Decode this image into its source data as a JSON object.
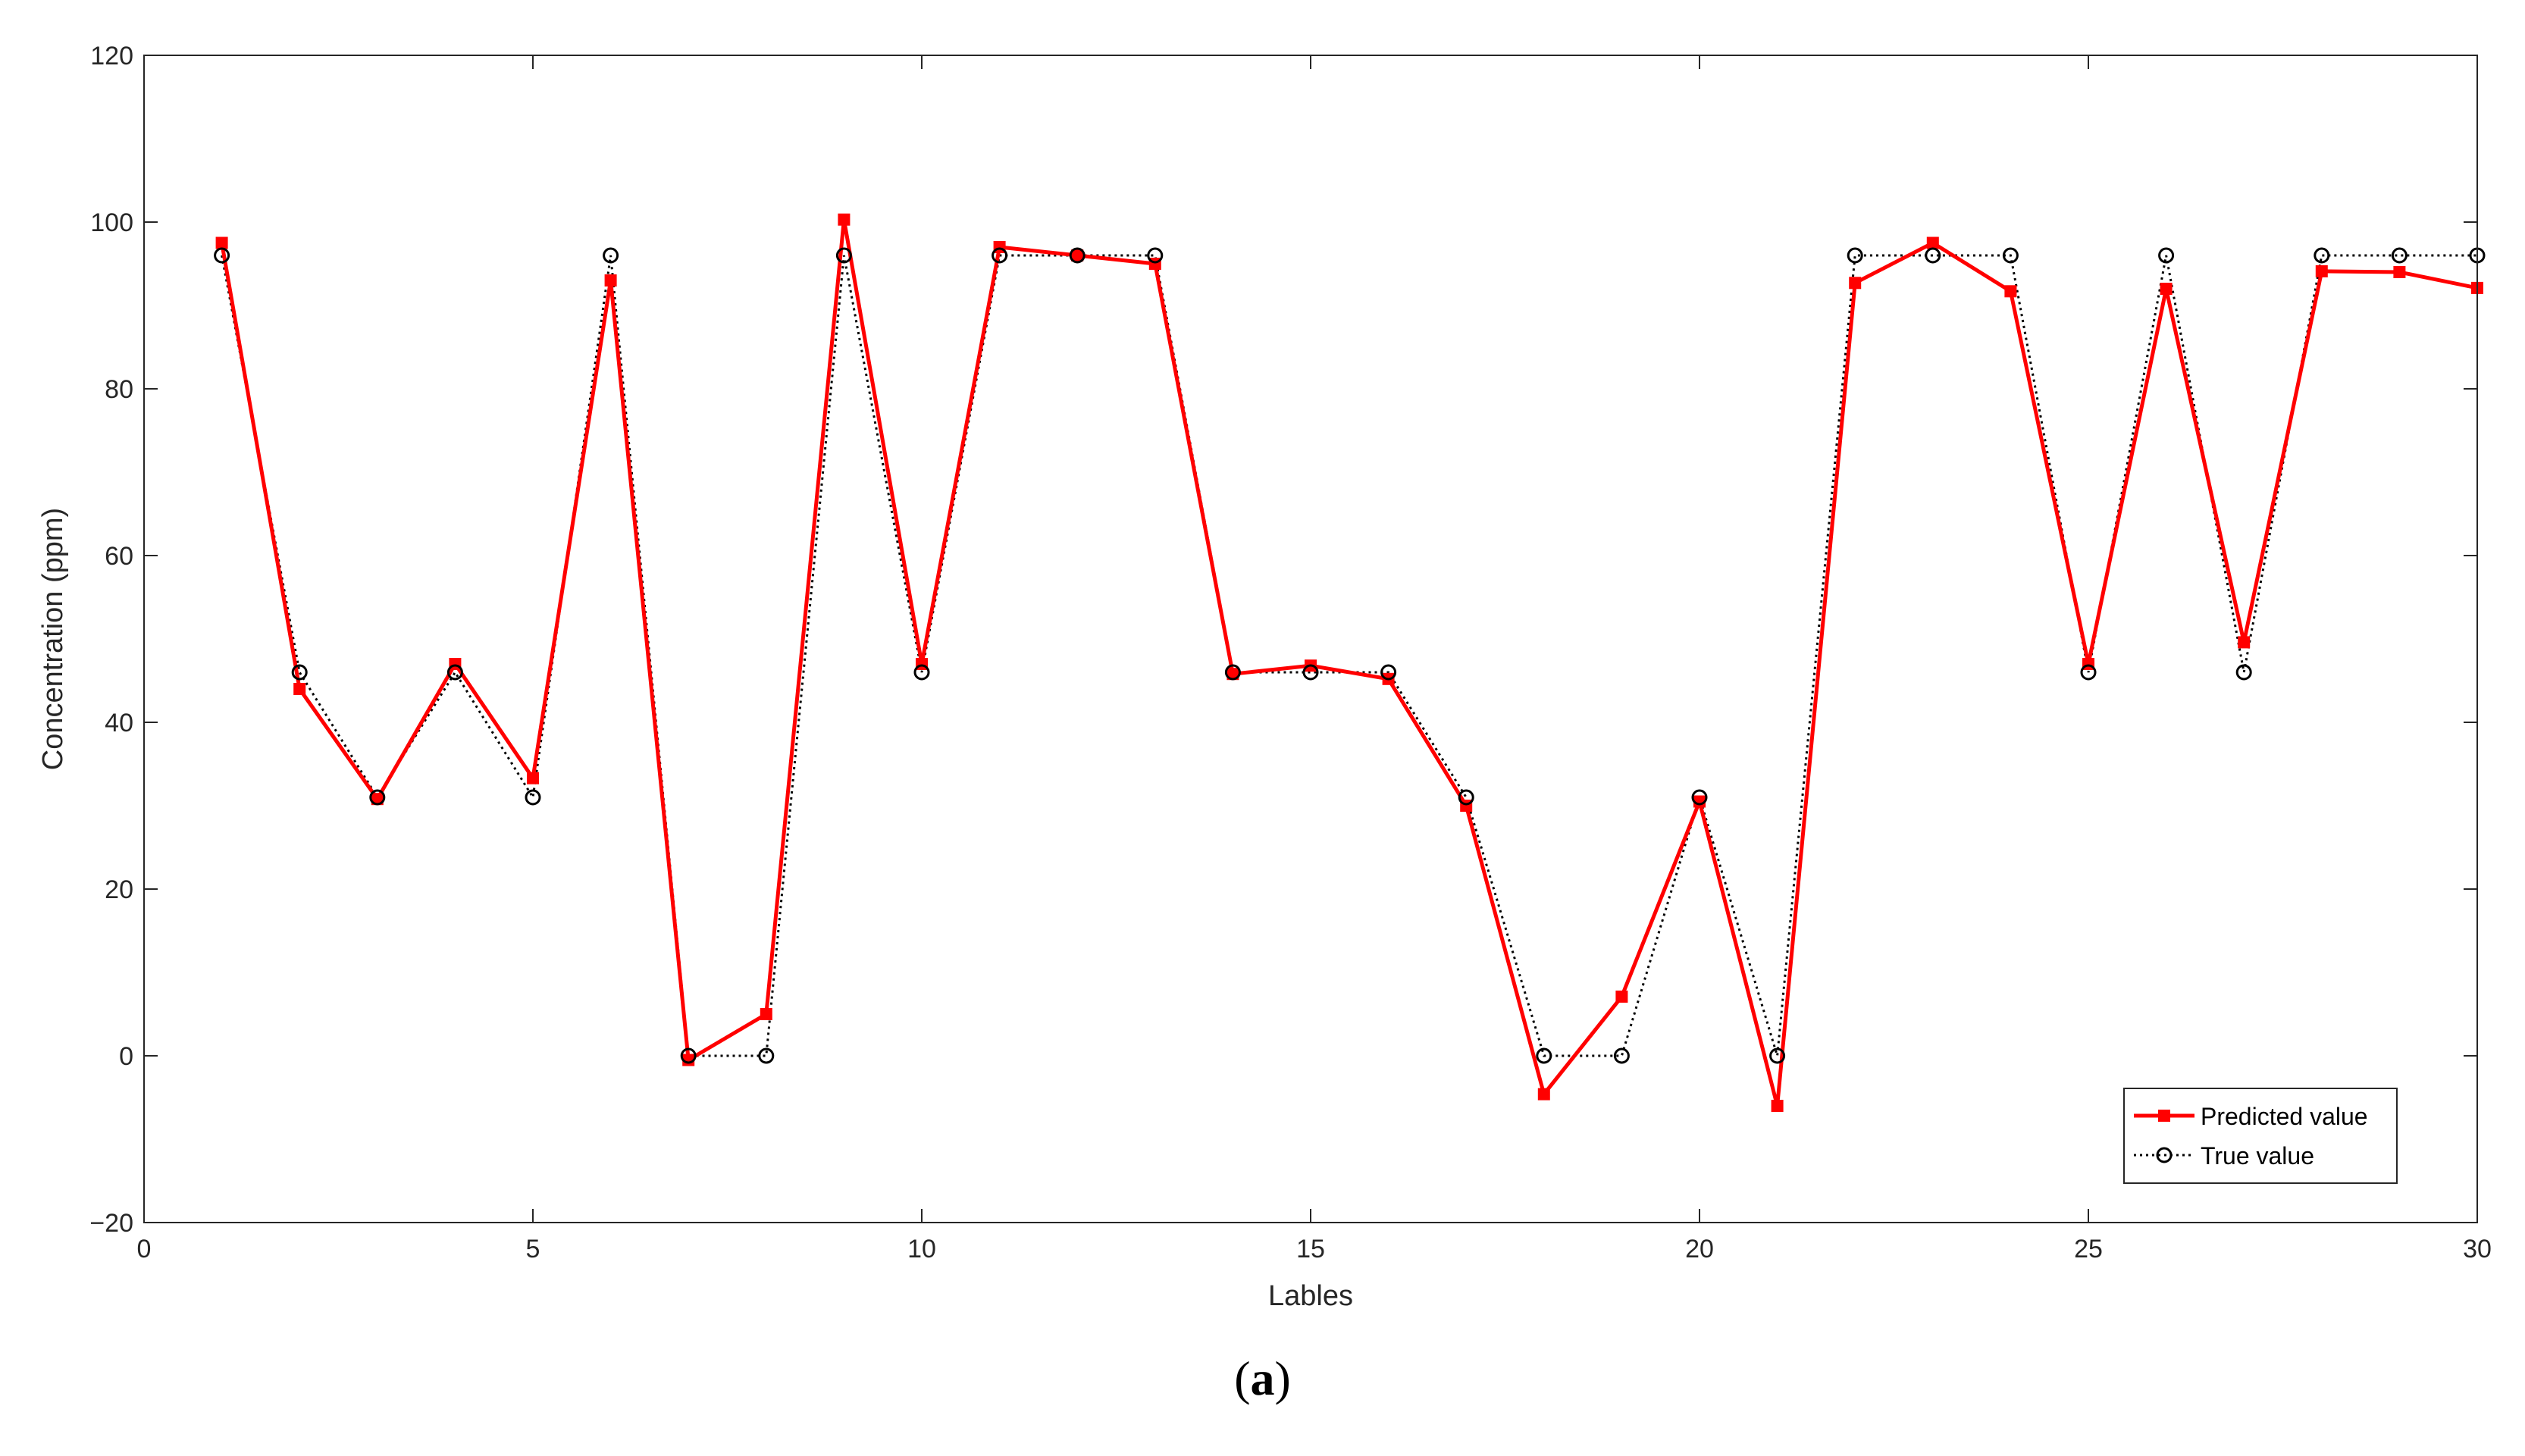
{
  "caption": {
    "open": "(",
    "letter": "a",
    "close": ")"
  },
  "colors": {
    "predicted": "#ff0000",
    "true": "#000000",
    "axis": "#262626",
    "background": "#ffffff"
  },
  "chart_data": {
    "type": "line",
    "title": "",
    "xlabel": "Lables",
    "ylabel": "Concentration (ppm)",
    "xlim": [
      0,
      30
    ],
    "ylim": [
      -20,
      120
    ],
    "xticks": [
      0,
      5,
      10,
      15,
      20,
      25,
      30
    ],
    "yticks": [
      -20,
      0,
      20,
      40,
      60,
      80,
      100,
      120
    ],
    "xtick_labels": [
      "0",
      "5",
      "10",
      "15",
      "20",
      "25",
      "30"
    ],
    "ytick_labels": [
      "−20",
      "0",
      "20",
      "40",
      "60",
      "80",
      "100",
      "120"
    ],
    "grid": false,
    "legend": "bottom-right",
    "x": [
      1,
      2,
      3,
      4,
      5,
      6,
      7,
      8,
      9,
      10,
      11,
      12,
      13,
      14,
      15,
      16,
      17,
      18,
      19,
      20,
      21,
      22,
      23,
      24,
      25,
      26,
      27,
      28,
      29,
      30
    ],
    "series": [
      {
        "name": "Predicted value",
        "style": "solid",
        "marker": "filled-square",
        "values": [
          97.5,
          44,
          30.8,
          47,
          33.3,
          93,
          -0.5,
          5,
          100.3,
          47,
          97,
          96,
          95,
          45.8,
          46.8,
          45.2,
          30,
          -4.6,
          7.1,
          30.5,
          -6,
          92.7,
          97.5,
          91.7,
          47,
          92,
          49.6,
          94.1,
          94,
          92.1
        ]
      },
      {
        "name": "True value",
        "style": "dotted",
        "marker": "open-circle",
        "values": [
          96,
          46,
          31,
          46,
          31,
          96,
          0,
          0,
          96,
          46,
          96,
          96,
          96,
          46,
          46,
          46,
          31,
          0,
          0,
          31,
          0,
          96,
          96,
          96,
          46,
          96,
          46,
          96,
          96,
          96
        ]
      }
    ]
  }
}
